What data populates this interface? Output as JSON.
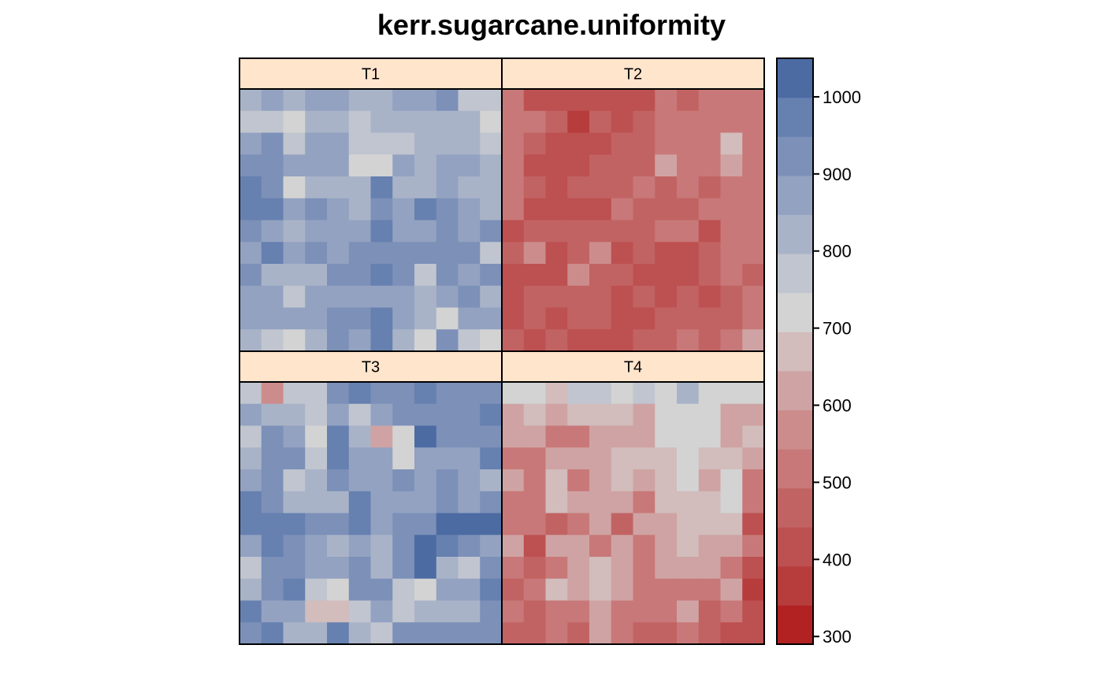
{
  "chart_data": {
    "type": "heatmap",
    "title": "kerr.sugarcane.uniformity",
    "panel_labels": [
      "T1",
      "T2",
      "T3",
      "T4"
    ],
    "panel_layout": "2x2",
    "colorbar": {
      "ticks": [
        300,
        400,
        500,
        600,
        700,
        800,
        900,
        1000
      ],
      "range": [
        290,
        1050
      ],
      "colors": [
        "#b22222",
        "#b73c3c",
        "#bd5050",
        "#c26363",
        "#c87878",
        "#cc8c8c",
        "#cfa3a3",
        "#d2bcbc",
        "#d3d3d3",
        "#c0c5cf",
        "#a9b3c8",
        "#93a2c1",
        "#7c90b8",
        "#6680b0",
        "#4c6ba3"
      ]
    },
    "panels": [
      {
        "name": "T1",
        "values": [
          [
            820,
            850,
            820,
            860,
            860,
            820,
            820,
            850,
            850,
            900,
            780,
            780
          ],
          [
            760,
            760,
            720,
            800,
            800,
            780,
            830,
            830,
            830,
            840,
            800,
            720
          ],
          [
            870,
            900,
            780,
            860,
            860,
            760,
            760,
            760,
            820,
            820,
            820,
            780
          ],
          [
            940,
            900,
            860,
            860,
            860,
            700,
            700,
            860,
            820,
            860,
            860,
            820
          ],
          [
            950,
            900,
            720,
            820,
            820,
            820,
            950,
            820,
            820,
            860,
            820,
            820
          ],
          [
            950,
            950,
            860,
            900,
            860,
            820,
            900,
            860,
            950,
            900,
            860,
            820
          ],
          [
            900,
            860,
            820,
            860,
            860,
            860,
            950,
            860,
            860,
            900,
            860,
            900
          ],
          [
            860,
            950,
            860,
            900,
            860,
            900,
            900,
            900,
            930,
            930,
            900,
            780
          ],
          [
            900,
            820,
            820,
            820,
            900,
            900,
            950,
            900,
            760,
            900,
            860,
            900
          ],
          [
            860,
            860,
            760,
            860,
            860,
            860,
            860,
            860,
            820,
            860,
            930,
            820
          ],
          [
            860,
            860,
            860,
            860,
            900,
            900,
            950,
            860,
            820,
            720,
            860,
            860
          ],
          [
            820,
            780,
            720,
            820,
            900,
            860,
            950,
            820,
            720,
            900,
            780,
            720
          ]
        ]
      },
      {
        "name": "T2",
        "values": [
          [
            500,
            440,
            440,
            440,
            440,
            440,
            440,
            540,
            480,
            540,
            540,
            540
          ],
          [
            540,
            540,
            480,
            380,
            480,
            440,
            480,
            540,
            540,
            540,
            540,
            540
          ],
          [
            540,
            480,
            440,
            440,
            440,
            480,
            480,
            540,
            540,
            540,
            680,
            540
          ],
          [
            540,
            440,
            440,
            440,
            480,
            480,
            480,
            600,
            540,
            540,
            620,
            540
          ],
          [
            540,
            480,
            440,
            480,
            480,
            480,
            540,
            480,
            540,
            480,
            540,
            540
          ],
          [
            540,
            440,
            440,
            440,
            440,
            540,
            480,
            480,
            480,
            540,
            540,
            540
          ],
          [
            440,
            480,
            480,
            480,
            480,
            480,
            480,
            540,
            540,
            440,
            540,
            540
          ],
          [
            480,
            580,
            440,
            480,
            580,
            440,
            480,
            440,
            440,
            480,
            540,
            540
          ],
          [
            400,
            440,
            440,
            560,
            480,
            480,
            440,
            440,
            440,
            480,
            540,
            480
          ],
          [
            400,
            480,
            480,
            480,
            480,
            440,
            480,
            440,
            480,
            440,
            480,
            540
          ],
          [
            440,
            480,
            440,
            480,
            480,
            440,
            440,
            480,
            480,
            480,
            480,
            540
          ],
          [
            480,
            440,
            480,
            440,
            440,
            440,
            480,
            480,
            540,
            480,
            540,
            600
          ]
        ]
      },
      {
        "name": "T3",
        "values": [
          [
            760,
            580,
            760,
            760,
            900,
            950,
            900,
            900,
            950,
            900,
            900,
            900
          ],
          [
            860,
            820,
            820,
            760,
            860,
            760,
            860,
            900,
            900,
            900,
            900,
            950
          ],
          [
            760,
            900,
            860,
            720,
            950,
            820,
            620,
            720,
            1000,
            900,
            900,
            900
          ],
          [
            820,
            900,
            900,
            760,
            950,
            860,
            860,
            720,
            860,
            860,
            860,
            950
          ],
          [
            860,
            900,
            760,
            820,
            900,
            860,
            860,
            900,
            860,
            900,
            860,
            820
          ],
          [
            950,
            900,
            820,
            820,
            820,
            950,
            860,
            860,
            860,
            900,
            860,
            900
          ],
          [
            950,
            950,
            950,
            900,
            900,
            950,
            860,
            900,
            900,
            1000,
            1000,
            1000
          ],
          [
            860,
            950,
            900,
            860,
            820,
            860,
            820,
            900,
            1000,
            950,
            900,
            860
          ],
          [
            760,
            900,
            900,
            860,
            860,
            900,
            820,
            900,
            1000,
            820,
            760,
            900
          ],
          [
            820,
            900,
            950,
            760,
            720,
            900,
            900,
            760,
            720,
            860,
            860,
            950
          ],
          [
            950,
            860,
            860,
            650,
            650,
            760,
            860,
            760,
            820,
            820,
            820,
            900
          ],
          [
            900,
            950,
            820,
            820,
            950,
            820,
            760,
            900,
            900,
            900,
            900,
            900
          ]
        ]
      },
      {
        "name": "T4",
        "values": [
          [
            720,
            720,
            650,
            760,
            760,
            720,
            760,
            720,
            820,
            720,
            720,
            720
          ],
          [
            600,
            650,
            600,
            650,
            650,
            650,
            600,
            720,
            720,
            720,
            600,
            600
          ],
          [
            600,
            600,
            540,
            540,
            600,
            600,
            600,
            720,
            720,
            720,
            600,
            680
          ],
          [
            540,
            540,
            600,
            600,
            600,
            680,
            680,
            680,
            720,
            680,
            680,
            600
          ],
          [
            600,
            500,
            680,
            500,
            600,
            680,
            620,
            680,
            720,
            620,
            720,
            540
          ],
          [
            540,
            540,
            680,
            600,
            600,
            600,
            540,
            680,
            680,
            680,
            720,
            540
          ],
          [
            540,
            540,
            480,
            540,
            600,
            480,
            600,
            600,
            680,
            680,
            680,
            440
          ],
          [
            600,
            440,
            600,
            600,
            540,
            600,
            540,
            600,
            680,
            600,
            600,
            500
          ],
          [
            540,
            480,
            540,
            600,
            680,
            600,
            540,
            600,
            600,
            600,
            540,
            440
          ],
          [
            480,
            540,
            680,
            600,
            680,
            600,
            540,
            540,
            540,
            540,
            600,
            380
          ],
          [
            540,
            480,
            540,
            540,
            600,
            540,
            540,
            540,
            600,
            480,
            540,
            440
          ],
          [
            480,
            480,
            540,
            480,
            600,
            540,
            480,
            480,
            540,
            480,
            440,
            440
          ]
        ]
      }
    ]
  }
}
